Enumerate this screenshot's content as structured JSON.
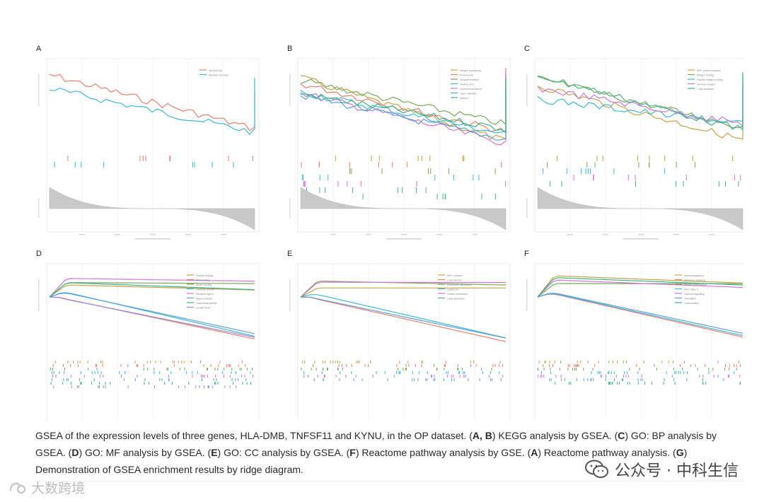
{
  "panels": [
    {
      "label": "A",
      "series_colors": [
        "#e8806f",
        "#3fb6d3"
      ],
      "legend": [
        "Hla-dmb sig",
        "Hla-dmb enriched"
      ]
    },
    {
      "label": "B",
      "series_colors": [
        "#c4a24b",
        "#e8806f",
        "#7aa85c",
        "#3fb6d3",
        "#cc77d6",
        "#5ea0d8",
        "#43b08a"
      ],
      "legend": [
        "Antigen processing",
        "Proteasome",
        "Allograft rejection",
        "Graft vs host",
        "Autoimmune thyroid",
        "Type I diabetes",
        "Asthma"
      ]
    },
    {
      "label": "C",
      "series_colors": [
        "#c4a24b",
        "#7aa85c",
        "#3fb6d3",
        "#cc77d6",
        "#43b08a"
      ],
      "legend": [
        "MHC protein complex",
        "Antigen binding",
        "Peptide antigen binding",
        "Immune receptor",
        "T cell activation"
      ]
    },
    {
      "label": "D",
      "series_colors": [
        "#c4a24b",
        "#e8806f",
        "#7aa85c",
        "#3fb6d3",
        "#cc77d6",
        "#5ea0d8",
        "#43b08a",
        "#9b8ad8"
      ],
      "legend": [
        "Peptide binding",
        "MHC binding",
        "Amide binding",
        "Cytokine activity",
        "Receptor ligand",
        "Signal receptor",
        "Chemokine activity",
        "Growth factor"
      ]
    },
    {
      "label": "E",
      "series_colors": [
        "#c4a24b",
        "#e8806f",
        "#7aa85c",
        "#3fb6d3",
        "#cc77d6",
        "#5ea0d8"
      ],
      "legend": [
        "MHC complex",
        "Lumenal side",
        "Endosome membrane",
        "Lysosome",
        "Vesicle membrane",
        "Golgi apparatus"
      ]
    },
    {
      "label": "F",
      "series_colors": [
        "#c4a24b",
        "#e8806f",
        "#7aa85c",
        "#3fb6d3",
        "#cc77d6",
        "#5ea0d8",
        "#43b08a"
      ],
      "legend": [
        "Immunoregulatory",
        "Interferon signaling",
        "Antigen presentation",
        "MHC class II",
        "Cytokine signaling",
        "Translation",
        "Costimulation"
      ]
    }
  ],
  "caption": {
    "text_1": "GSEA of the expression levels of three genes, HLA-DMB, TNFSF11 and KYNU, in the OP dataset. (",
    "b_1": "A, B",
    "text_2": ") KEGG analysis by GSEA. (",
    "b_2": "C",
    "text_3": ") GO: BP analysis by GSEA. (",
    "b_3": "D",
    "text_4": ") GO: MF analysis by GSEA. (",
    "b_4": "E",
    "text_5": ") GO: CC analysis by GSEA. (",
    "b_5": "F",
    "text_6": ") Reactome pathway analysis by GSE. (",
    "b_6": "A",
    "text_7": ") Reactome pathway analysis. (",
    "b_7": "G",
    "text_8": ") Demonstration of GSEA enrichment results by ridge diagram."
  },
  "watermark_right": "公众号 · 中科生信",
  "watermark_left": "大数跨境"
}
